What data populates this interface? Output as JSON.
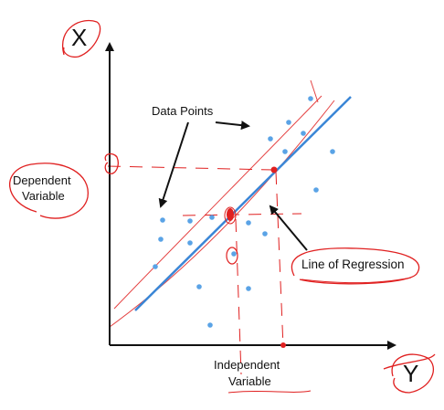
{
  "labels": {
    "x_axis_letter": "X",
    "y_axis_letter": "Y",
    "data_points": "Data Points",
    "dependent_line1": "Dependent",
    "dependent_line2": "Variable",
    "independent_line1": "Independent",
    "independent_line2": "Variable",
    "line_of_regression": "Line of Regression"
  },
  "colors": {
    "axis": "#111111",
    "points": "#5aa3e6",
    "regression_line": "#3a86d6",
    "annotation_red": "#e02020"
  }
}
